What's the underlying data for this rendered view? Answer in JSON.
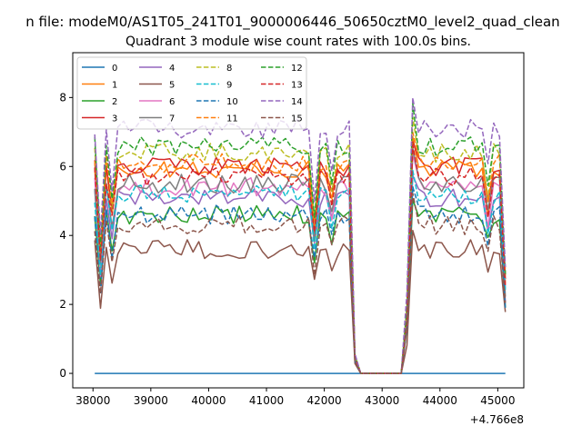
{
  "chart_data": {
    "type": "line",
    "suptitle": "n file: modeM0/AS1T05_241T01_9000006446_50650cztM0_level2_quad_clean",
    "title": "Quadrant 3 module wise count rates with 100.0s bins.",
    "xlabel": "",
    "ylabel": "",
    "x_offset_label": "+4.766e8",
    "xlim": [
      37650,
      45450
    ],
    "ylim": [
      -0.42,
      9.3
    ],
    "x_ticks": [
      38000,
      39000,
      40000,
      41000,
      42000,
      43000,
      44000,
      45000
    ],
    "x_tick_labels": [
      "38000",
      "39000",
      "40000",
      "41000",
      "42000",
      "43000",
      "44000",
      "45000"
    ],
    "y_ticks": [
      0,
      2,
      4,
      6,
      8
    ],
    "y_tick_labels": [
      "0",
      "2",
      "4",
      "6",
      "8"
    ],
    "grid": false,
    "legend_position": "top-left",
    "legend_columns": 4,
    "x_start": 38030,
    "x_step": 100,
    "gap_start": 42530,
    "gap_end": 43430,
    "x_end": 45130,
    "series": [
      {
        "name": "0",
        "color": "#1f77b4",
        "dashed": false,
        "level": 0.0
      },
      {
        "name": "1",
        "color": "#ff7f0e",
        "dashed": false,
        "level": 5.9
      },
      {
        "name": "2",
        "color": "#2ca02c",
        "dashed": false,
        "level": 4.6
      },
      {
        "name": "3",
        "color": "#d62728",
        "dashed": false,
        "level": 6.0
      },
      {
        "name": "4",
        "color": "#9467bd",
        "dashed": false,
        "level": 5.1
      },
      {
        "name": "5",
        "color": "#8c564b",
        "dashed": false,
        "level": 3.6
      },
      {
        "name": "6",
        "color": "#e377c2",
        "dashed": false,
        "level": 5.4
      },
      {
        "name": "7",
        "color": "#7f7f7f",
        "dashed": false,
        "level": 5.5
      },
      {
        "name": "8",
        "color": "#bcbd22",
        "dashed": true,
        "level": 6.4
      },
      {
        "name": "9",
        "color": "#17becf",
        "dashed": true,
        "level": 5.2
      },
      {
        "name": "10",
        "color": "#1f77b4",
        "dashed": true,
        "level": 4.6
      },
      {
        "name": "11",
        "color": "#ff7f0e",
        "dashed": true,
        "level": 6.1
      },
      {
        "name": "12",
        "color": "#2ca02c",
        "dashed": true,
        "level": 6.6
      },
      {
        "name": "13",
        "color": "#d62728",
        "dashed": true,
        "level": 5.7
      },
      {
        "name": "14",
        "color": "#9467bd",
        "dashed": true,
        "level": 7.1
      },
      {
        "name": "15",
        "color": "#8c564b",
        "dashed": true,
        "level": 4.3
      }
    ]
  }
}
